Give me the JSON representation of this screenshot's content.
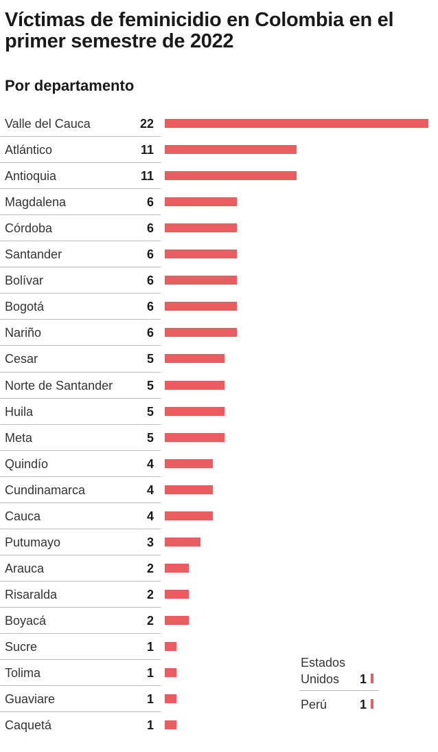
{
  "chart_data": [
    {
      "type": "bar",
      "title": "Víctimas de feminicidio en Colombia en el primer semestre de 2022",
      "subtitle": "Por departamento",
      "categories": [
        "Valle del Cauca",
        "Atlántico",
        "Antioquia",
        "Magdalena",
        "Córdoba",
        "Santander",
        "Bolívar",
        "Bogotá",
        "Nariño",
        "Cesar",
        "Norte de Santander",
        "Huila",
        "Meta",
        "Quindío",
        "Cundinamarca",
        "Cauca",
        "Putumayo",
        "Arauca",
        "Risaralda",
        "Boyacá",
        "Sucre",
        "Tolima",
        "Guaviare",
        "Caquetá"
      ],
      "values": [
        22,
        11,
        11,
        6,
        6,
        6,
        6,
        6,
        6,
        5,
        5,
        5,
        5,
        4,
        4,
        4,
        3,
        2,
        2,
        2,
        1,
        1,
        1,
        1
      ],
      "color": "#e95c5f"
    },
    {
      "type": "bar",
      "categories": [
        "Estados Unidos",
        "Perú"
      ],
      "values": [
        1,
        1
      ],
      "color": "#e95c5f"
    }
  ]
}
